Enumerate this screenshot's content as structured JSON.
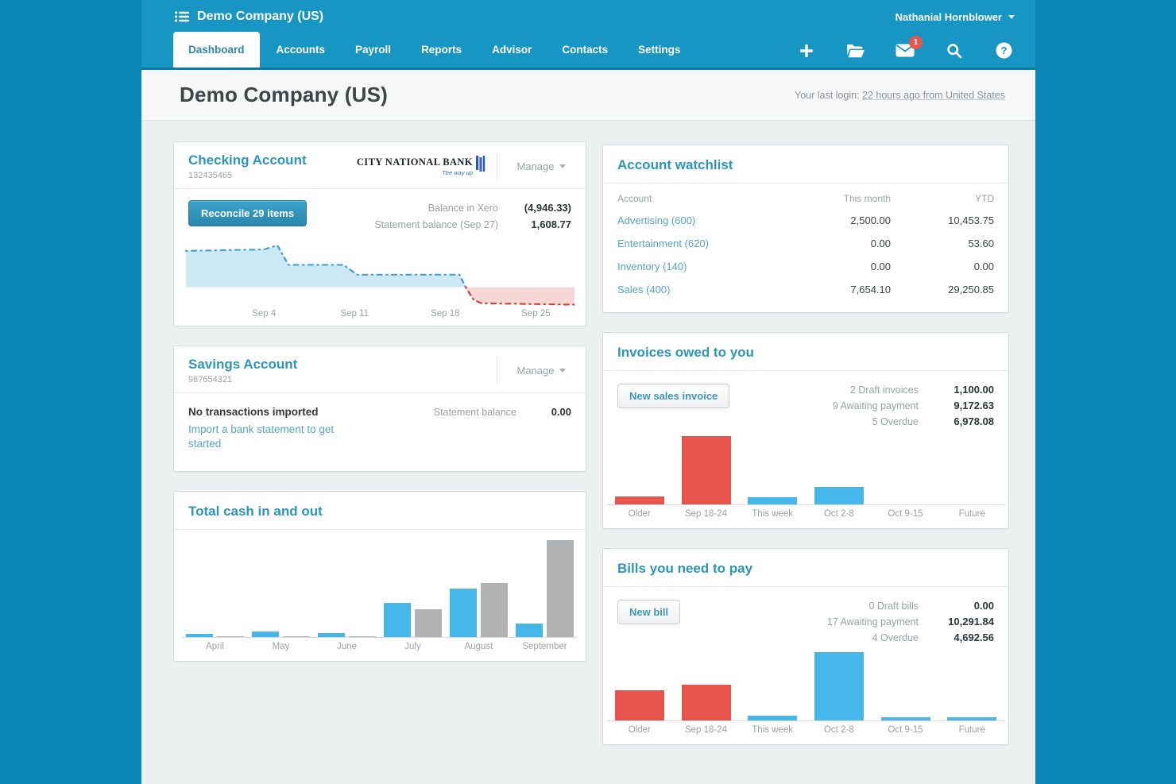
{
  "topbar": {
    "brand": "Demo Company (US)",
    "user": "Nathanial Hornblower",
    "mail_badge": "1",
    "icons": [
      "org-list-icon",
      "plus-icon",
      "folder-icon",
      "mail-icon",
      "search-icon",
      "help-icon"
    ]
  },
  "nav": {
    "tabs": [
      "Dashboard",
      "Accounts",
      "Payroll",
      "Reports",
      "Advisor",
      "Contacts",
      "Settings"
    ],
    "active_tab": "Dashboard"
  },
  "page_header": {
    "title": "Demo Company (US)",
    "last_login_label": "Your last login:",
    "last_login_value": "22 hours ago from United States"
  },
  "checking": {
    "title": "Checking Account",
    "number": "132435465",
    "bank": {
      "name": "City National Bank",
      "tagline": "The way up"
    },
    "manage_label": "Manage",
    "reconcile_label": "Reconcile 29 items",
    "balances": [
      {
        "label": "Balance in Xero",
        "value": "(4,946.33)"
      },
      {
        "label": "Statement balance (Sep 27)",
        "value": "1,608.77"
      }
    ]
  },
  "savings": {
    "title": "Savings Account",
    "number": "987654321",
    "manage_label": "Manage",
    "status": "No transactions imported",
    "link": "Import a bank statement to get started",
    "balance_label": "Statement balance",
    "balance_value": "0.00"
  },
  "watchlist": {
    "title": "Account watchlist",
    "columns": [
      "Account",
      "This month",
      "YTD"
    ],
    "rows": [
      {
        "account": "Advertising (600)",
        "month": "2,500.00",
        "ytd": "10,453.75"
      },
      {
        "account": "Entertainment (620)",
        "month": "0.00",
        "ytd": "53.60"
      },
      {
        "account": "Inventory (140)",
        "month": "0.00",
        "ytd": "0.00"
      },
      {
        "account": "Sales (400)",
        "month": "7,654.10",
        "ytd": "29,250.85"
      }
    ]
  },
  "invoices": {
    "title": "Invoices owed to you",
    "button": "New sales invoice",
    "summary": [
      {
        "label": "2 Draft invoices",
        "value": "1,100.00"
      },
      {
        "label": "9 Awaiting payment",
        "value": "9,172.63"
      },
      {
        "label": "5 Overdue",
        "value": "6,978.08"
      }
    ]
  },
  "bills": {
    "title": "Bills you need to pay",
    "button": "New bill",
    "summary": [
      {
        "label": "0 Draft bills",
        "value": "0.00"
      },
      {
        "label": "17 Awaiting payment",
        "value": "10,291.84"
      },
      {
        "label": "4 Overdue",
        "value": "4,692.56"
      }
    ]
  },
  "cash": {
    "title": "Total cash in and out"
  },
  "colors": {
    "bar_blue": "#45b7e9",
    "bar_gray": "#b1b3b5",
    "bar_red": "#e7544b",
    "spark_blue": "#3f9fd8",
    "spark_blue_fill": "#cde9f6",
    "spark_red": "#cf4237",
    "spark_red_fill": "#f6d7d5",
    "topbar_blue": "#1796c3",
    "accent_blue": "#2b96ba"
  },
  "chart_data": [
    {
      "id": "checking-balance-sparkline",
      "type": "area",
      "title": "Checking Account balance over time",
      "units": "relative (unlabeled axis); positive segment blue, negative segment red",
      "x_ticks": [
        "Sep 4",
        "Sep 11",
        "Sep 18",
        "Sep 25"
      ],
      "tick_x": [
        100,
        215,
        330,
        445
      ],
      "x_range": [
        0,
        494
      ],
      "baseline_y": 70,
      "series": [
        {
          "name": "balance-positive",
          "color": "#3f9fd8",
          "fill": "#cde9f6",
          "points": [
            [
              1,
              18
            ],
            [
              100,
              16
            ],
            [
              117,
              10
            ],
            [
              131,
              38
            ],
            [
              201,
              38
            ],
            [
              218,
              52
            ],
            [
              348,
              52
            ],
            [
              356,
              70
            ]
          ]
        },
        {
          "name": "balance-negative",
          "color": "#cf4237",
          "fill": "#f6d7d5",
          "points": [
            [
              356,
              70
            ],
            [
              366,
              88
            ],
            [
              376,
              93
            ],
            [
              494,
              95
            ]
          ]
        }
      ]
    },
    {
      "id": "invoices-owed-by-week",
      "type": "bar",
      "title": "Invoices owed to you by due week",
      "units": "relative height % (amounts unlabeled)",
      "categories": [
        "Older",
        "Sep 18-24",
        "This week",
        "Oct 2-8",
        "Oct 9-15",
        "Future"
      ],
      "values": [
        12,
        100,
        11,
        26,
        0,
        0
      ],
      "bar_colors": [
        "#e7544b",
        "#e7544b",
        "#45b7e9",
        "#45b7e9",
        "#45b7e9",
        "#45b7e9"
      ]
    },
    {
      "id": "bills-due-by-week",
      "type": "bar",
      "title": "Bills you need to pay by due week",
      "units": "relative height % (amounts unlabeled)",
      "categories": [
        "Older",
        "Sep 18-24",
        "This week",
        "Oct 2-8",
        "Oct 9-15",
        "Future"
      ],
      "values": [
        44,
        52,
        7,
        100,
        5,
        5
      ],
      "bar_colors": [
        "#e7544b",
        "#e7544b",
        "#45b7e9",
        "#45b7e9",
        "#45b7e9",
        "#45b7e9"
      ]
    },
    {
      "id": "total-cash-in-and-out",
      "type": "bar",
      "title": "Total cash in and out",
      "units": "relative height % (amounts unlabeled)",
      "categories": [
        "April",
        "May",
        "June",
        "July",
        "August",
        "September"
      ],
      "series": [
        {
          "name": "Cash in",
          "color": "#45b7e9",
          "values": [
            3,
            6,
            4,
            35,
            50,
            14
          ]
        },
        {
          "name": "Cash out",
          "color": "#b1b3b5",
          "values": [
            1,
            1,
            1,
            29,
            56,
            100
          ]
        }
      ]
    }
  ]
}
